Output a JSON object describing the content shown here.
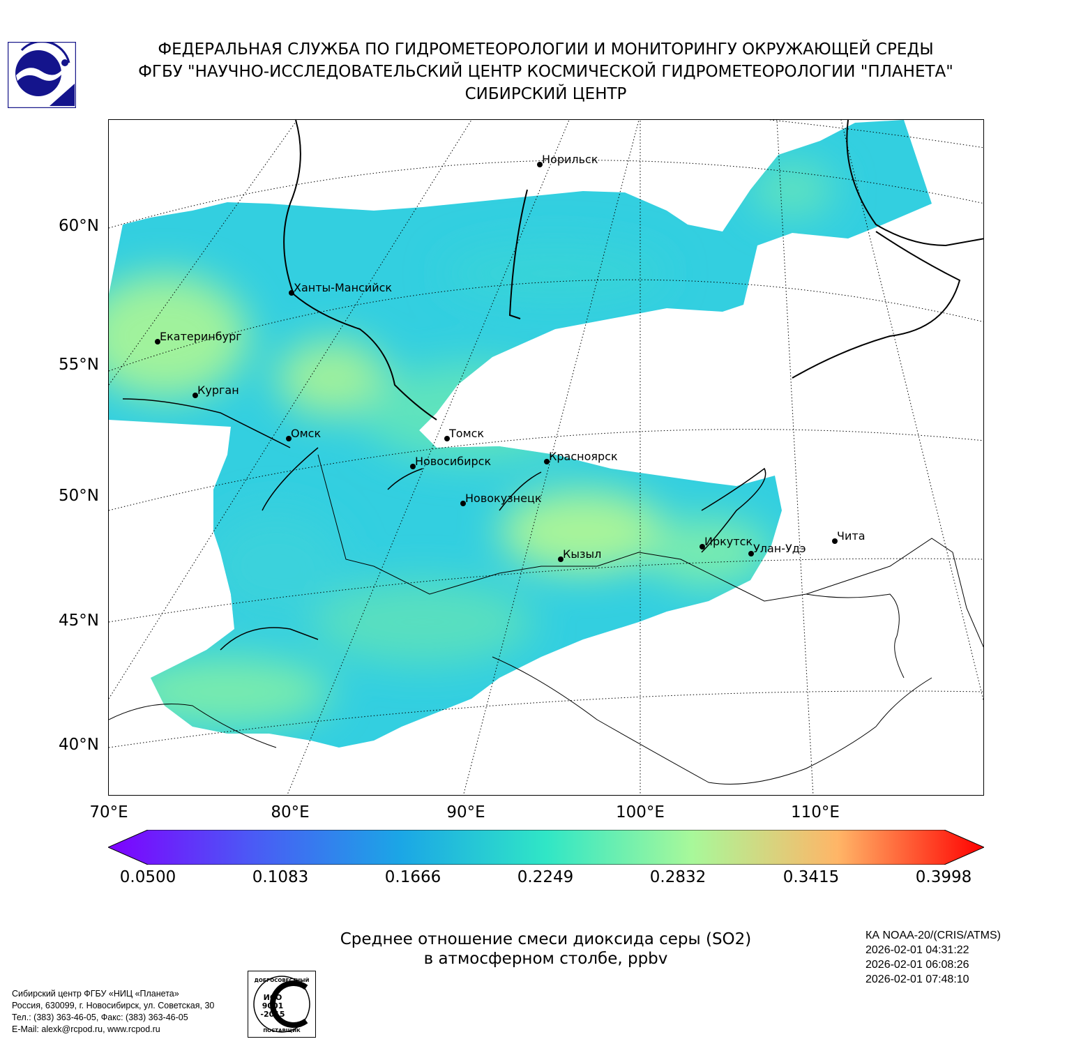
{
  "header": {
    "line1": "ФЕДЕРАЛЬНАЯ СЛУЖБА ПО ГИДРОМЕТЕОРОЛОГИИ И МОНИТОРИНГУ ОКРУЖАЮЩЕЙ СРЕДЫ",
    "line2": "ФГБУ \"НАУЧНО-ИССЛЕДОВАТЕЛЬСКИЙ ЦЕНТР КОСМИЧЕСКОЙ ГИДРОМЕТЕОРОЛОГИИ \"ПЛАНЕТА\"",
    "line3": "СИБИРСКИЙ ЦЕНТР"
  },
  "map": {
    "lat_labels": [
      "60°N",
      "55°N",
      "50°N",
      "45°N",
      "40°N"
    ],
    "lon_labels": [
      "70°E",
      "80°E",
      "90°E",
      "100°E",
      "110°E"
    ],
    "cities": [
      {
        "name": "Норильск"
      },
      {
        "name": "Ханты-Мансийск"
      },
      {
        "name": "Екатеринбург"
      },
      {
        "name": "Курган"
      },
      {
        "name": "Омск"
      },
      {
        "name": "Томск"
      },
      {
        "name": "Новосибирск"
      },
      {
        "name": "Красноярск"
      },
      {
        "name": "Новокузнецк"
      },
      {
        "name": "Кызыл"
      },
      {
        "name": "Иркутск"
      },
      {
        "name": "Улан-Удэ"
      },
      {
        "name": "Чита"
      }
    ]
  },
  "colorbar": {
    "tick_labels": [
      "0.0500",
      "0.1083",
      "0.1666",
      "0.2249",
      "0.2832",
      "0.3415",
      "0.3998"
    ],
    "min": 0.05,
    "max": 0.3998,
    "colors": [
      "#7f00ff",
      "#4a5bf5",
      "#1ba6e6",
      "#30e6c6",
      "#a8f89a",
      "#ffb567",
      "#ff0000"
    ]
  },
  "caption": {
    "line1": "Среднее отношение смеси диоксида серы (SO2)",
    "line2": "в атмосферном столбе, ppbv"
  },
  "satellite": {
    "name": "КА NOAA-20/(CRIS/ATMS)",
    "times": [
      "2026-02-01 04:31:22",
      "2026-02-01 06:08:26",
      "2026-02-01 07:48:10"
    ]
  },
  "footer": {
    "lines": [
      "Сибирский центр ФГБУ «НИЦ «Планета»",
      "Россия, 630099, г. Новосибирск, ул. Советская, 30",
      "Тел.: (383) 363-46-05, Факс: (383) 363-46-05",
      "E-Mail: alexk@rcpod.ru, www.rcpod.ru"
    ]
  },
  "iso_badge": {
    "top_text": "ДОБРОСОВЕСТНЫЙ",
    "line1": "ИСО",
    "line2": "9001",
    "line3": "-2015",
    "bottom_text": "ПОСТАВЩИК"
  }
}
